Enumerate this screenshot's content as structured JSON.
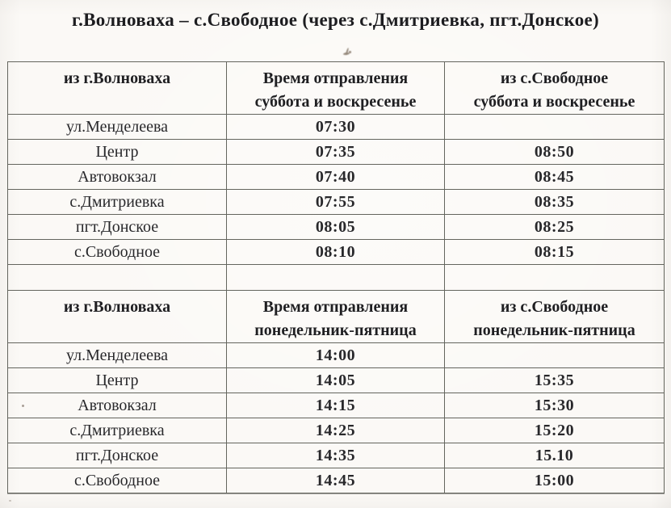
{
  "title": "г.Волноваха – с.Свободное (через с.Дмитриевка, пгт.Донское)",
  "schedule": {
    "sections": [
      {
        "header": {
          "from": "из г.Волноваха",
          "time_line1": "Время отправления",
          "time_line2": "суббота и воскресенье",
          "return_line1": "из с.Свободное",
          "return_line2": "суббота и воскресенье"
        },
        "rows": [
          {
            "stop": "ул.Менделеева",
            "depart": "07:30",
            "return": ""
          },
          {
            "stop": "Центр",
            "depart": "07:35",
            "return": "08:50"
          },
          {
            "stop": "Автовокзал",
            "depart": "07:40",
            "return": "08:45"
          },
          {
            "stop": "с.Дмитриевка",
            "depart": "07:55",
            "return": "08:35"
          },
          {
            "stop": "пгт.Донское",
            "depart": "08:05",
            "return": "08:25"
          },
          {
            "stop": "с.Свободное",
            "depart": "08:10",
            "return": "08:15"
          }
        ]
      },
      {
        "header": {
          "from": "из г.Волноваха",
          "time_line1": "Время отправления",
          "time_line2": "понедельник-пятница",
          "return_line1": "из с.Свободное",
          "return_line2": "понедельник-пятница"
        },
        "rows": [
          {
            "stop": "ул.Менделеева",
            "depart": "14:00",
            "return": ""
          },
          {
            "stop": "Центр",
            "depart": "14:05",
            "return": "15:35"
          },
          {
            "stop": "Автовокзал",
            "depart": "14:15",
            "return": "15:30"
          },
          {
            "stop": "с.Дмитриевка",
            "depart": "14:25",
            "return": "15:20"
          },
          {
            "stop": "пгт.Донское",
            "depart": "14:35",
            "return": "15.10"
          },
          {
            "stop": "с.Свободное",
            "depart": "14:45",
            "return": "15:00"
          }
        ]
      }
    ]
  },
  "colors": {
    "paper": "#fbf9f6",
    "border": "#64655e",
    "text": "#242426"
  }
}
